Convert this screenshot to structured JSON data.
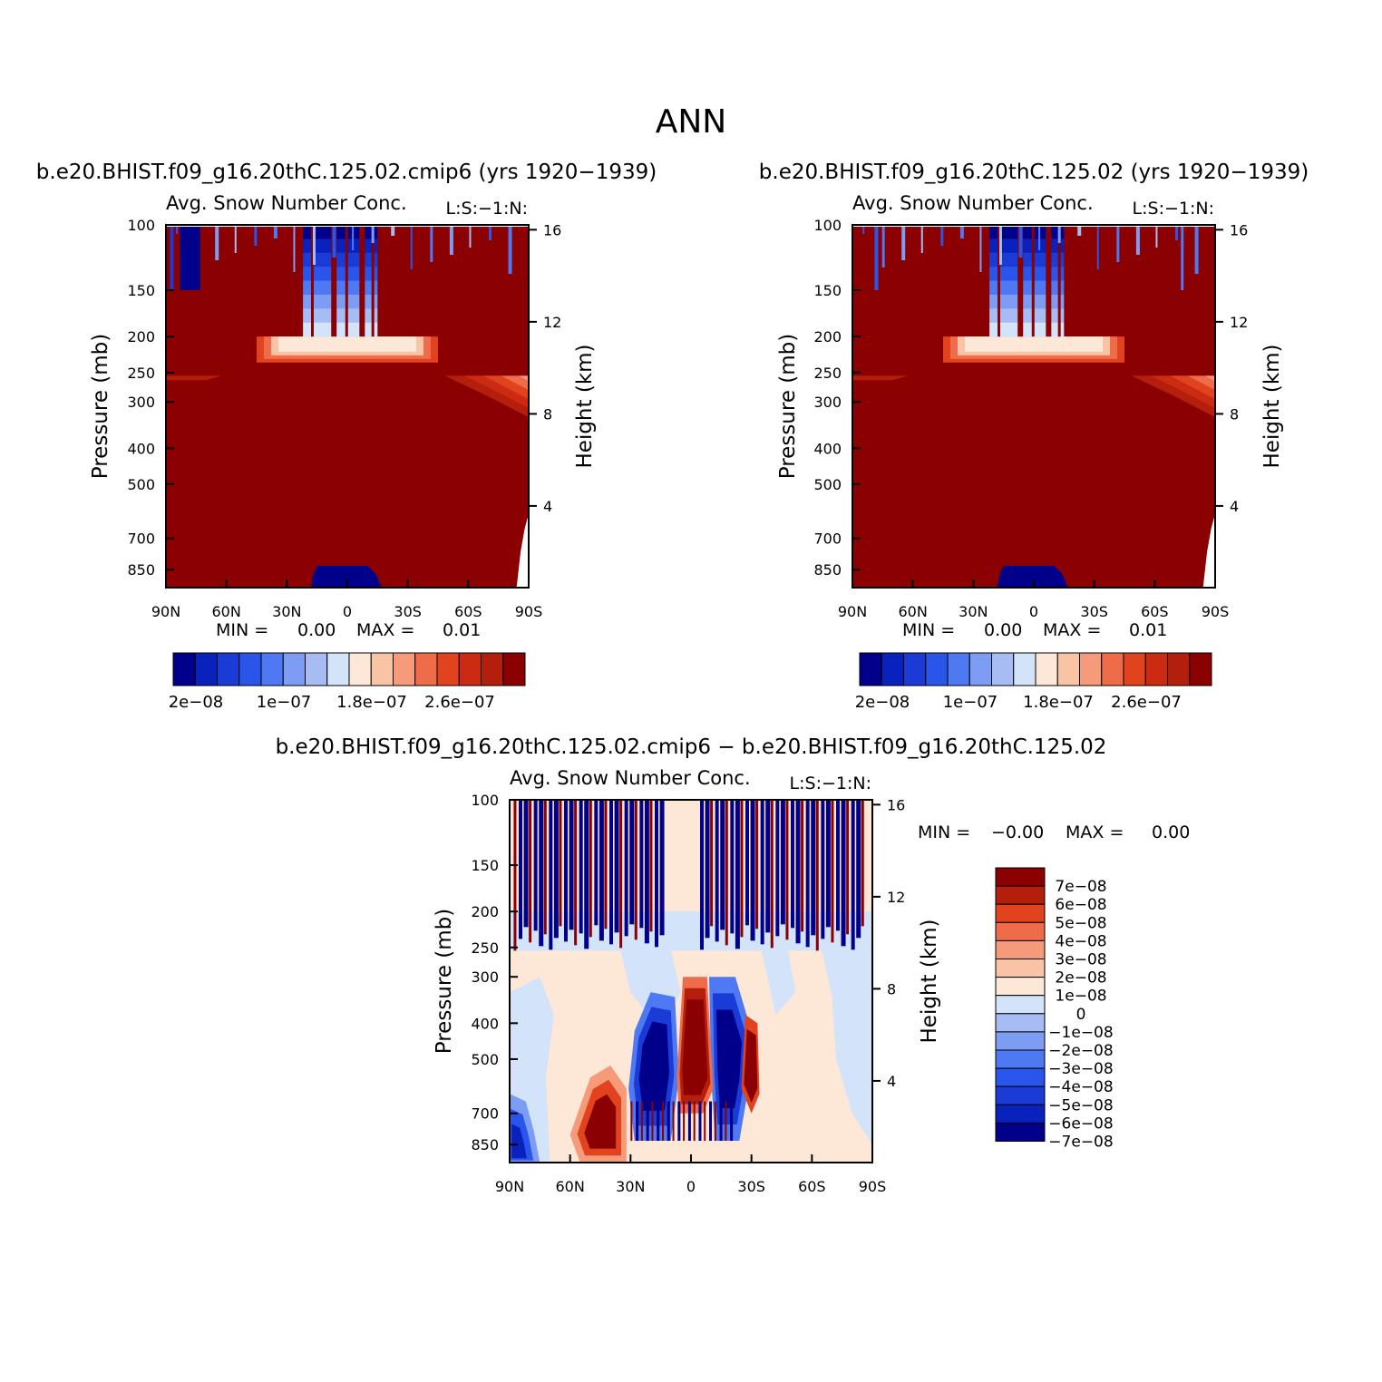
{
  "figure": {
    "title": "ANN",
    "colors": {
      "abs_levels": [
        "#00008b",
        "#0a22bd",
        "#1a3bd6",
        "#2a55ea",
        "#4f79f2",
        "#7d9df5",
        "#a6bcf3",
        "#d2e3fa",
        "#fde8d7",
        "#f9c4a6",
        "#f59b7a",
        "#ef6c4a",
        "#e2431f",
        "#cc2a13",
        "#b41f0c",
        "#8b0000"
      ],
      "diff_levels": [
        "#00008b",
        "#0a22bd",
        "#1a3bd6",
        "#2a55ea",
        "#4f79f2",
        "#7d9df5",
        "#a6bcf3",
        "#d2e3fa",
        "#fde8d7",
        "#f9c4a6",
        "#f59b7a",
        "#ef6c4a",
        "#e2431f",
        "#b41f0c",
        "#8b0000"
      ]
    }
  },
  "chart_data": [
    {
      "type": "heatmap",
      "case": "b.e20.BHIST.f09_g16.20thC.125.02.cmip6 (yrs 1920−1939)",
      "title": "Avg. Snow Number Conc.",
      "units": "L:S:−1:N:",
      "ylabel": "Pressure (mb)",
      "y2label": "Height (km)",
      "x_ticks": [
        "90N",
        "60N",
        "30N",
        "0",
        "30S",
        "60S",
        "90S"
      ],
      "x_values": [
        90,
        60,
        30,
        0,
        -30,
        -60,
        -90
      ],
      "y_ticks": [
        "100",
        "150",
        "200",
        "250",
        "300",
        "400",
        "500",
        "700",
        "850"
      ],
      "y_values": [
        100,
        150,
        200,
        250,
        300,
        400,
        500,
        700,
        850
      ],
      "ylim": [
        100,
        950
      ],
      "y2_ticks": [
        "16",
        "12",
        "8",
        "4"
      ],
      "y2_values": [
        16,
        12,
        8,
        4
      ],
      "min_label": "MIN =",
      "min_value": "0.00",
      "max_label": "MAX =",
      "max_value": "0.01",
      "colorbar_labels": [
        "2e−08",
        "1e−07",
        "1.8e−07",
        "2.6e−07"
      ]
    },
    {
      "type": "heatmap",
      "case": "b.e20.BHIST.f09_g16.20thC.125.02 (yrs 1920−1939)",
      "title": "Avg. Snow Number Conc.",
      "units": "L:S:−1:N:",
      "ylabel": "Pressure (mb)",
      "y2label": "Height (km)",
      "x_ticks": [
        "90N",
        "60N",
        "30N",
        "0",
        "30S",
        "60S",
        "90S"
      ],
      "x_values": [
        90,
        60,
        30,
        0,
        -30,
        -60,
        -90
      ],
      "y_ticks": [
        "100",
        "150",
        "200",
        "250",
        "300",
        "400",
        "500",
        "700",
        "850"
      ],
      "y_values": [
        100,
        150,
        200,
        250,
        300,
        400,
        500,
        700,
        850
      ],
      "ylim": [
        100,
        950
      ],
      "y2_ticks": [
        "16",
        "12",
        "8",
        "4"
      ],
      "y2_values": [
        16,
        12,
        8,
        4
      ],
      "min_label": "MIN =",
      "min_value": "0.00",
      "max_label": "MAX =",
      "max_value": "0.01",
      "colorbar_labels": [
        "2e−08",
        "1e−07",
        "1.8e−07",
        "2.6e−07"
      ]
    },
    {
      "type": "heatmap",
      "case": "b.e20.BHIST.f09_g16.20thC.125.02.cmip6 − b.e20.BHIST.f09_g16.20thC.125.02",
      "title": "Avg. Snow Number Conc.",
      "units": "L:S:−1:N:",
      "ylabel": "Pressure (mb)",
      "y2label": "Height (km)",
      "x_ticks": [
        "90N",
        "60N",
        "30N",
        "0",
        "30S",
        "60S",
        "90S"
      ],
      "x_values": [
        90,
        60,
        30,
        0,
        -30,
        -60,
        -90
      ],
      "y_ticks": [
        "100",
        "150",
        "200",
        "250",
        "300",
        "400",
        "500",
        "700",
        "850"
      ],
      "y_values": [
        100,
        150,
        200,
        250,
        300,
        400,
        500,
        700,
        850
      ],
      "ylim": [
        100,
        950
      ],
      "y2_ticks": [
        "16",
        "12",
        "8",
        "4"
      ],
      "y2_values": [
        16,
        12,
        8,
        4
      ],
      "min_label": "MIN =",
      "min_value": "−0.00",
      "max_label": "MAX =",
      "max_value": "0.00",
      "colorbar_labels": [
        "7e−08",
        "6e−08",
        "5e−08",
        "4e−08",
        "3e−08",
        "2e−08",
        "1e−08",
        "0",
        "−1e−08",
        "−2e−08",
        "−3e−08",
        "−4e−08",
        "−5e−08",
        "−6e−08",
        "−7e−08"
      ]
    }
  ]
}
